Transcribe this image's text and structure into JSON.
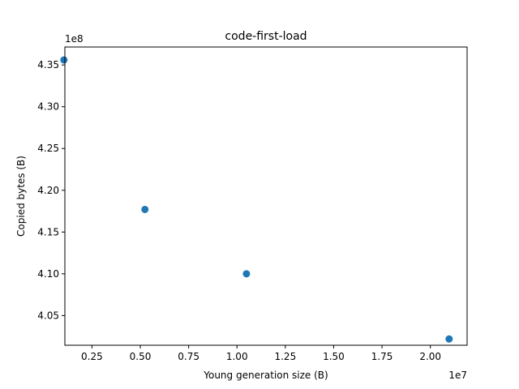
{
  "chart_data": {
    "type": "scatter",
    "title": "code-first-load",
    "xlabel": "Young generation size (B)",
    "ylabel": "Copied bytes (B)",
    "x_offset_label": "1e7",
    "y_offset_label": "1e8",
    "xlim": [
      0.11,
      2.19
    ],
    "ylim": [
      4.0145,
      4.3715
    ],
    "x_ticks": [
      0.25,
      0.5,
      0.75,
      1.0,
      1.25,
      1.5,
      1.75,
      2.0
    ],
    "x_tick_labels": [
      "0.25",
      "0.50",
      "0.75",
      "1.00",
      "1.25",
      "1.50",
      "1.75",
      "2.00"
    ],
    "y_ticks": [
      4.05,
      4.1,
      4.15,
      4.2,
      4.25,
      4.3,
      4.35
    ],
    "y_tick_labels": [
      "4.05",
      "4.10",
      "4.15",
      "4.20",
      "4.25",
      "4.30",
      "4.35"
    ],
    "series": [
      {
        "x": [
          0.105,
          0.524,
          1.049,
          2.097
        ],
        "y": [
          4.356,
          4.177,
          4.1,
          4.022
        ]
      }
    ],
    "marker_color": "#1f77b4",
    "grid": false
  }
}
